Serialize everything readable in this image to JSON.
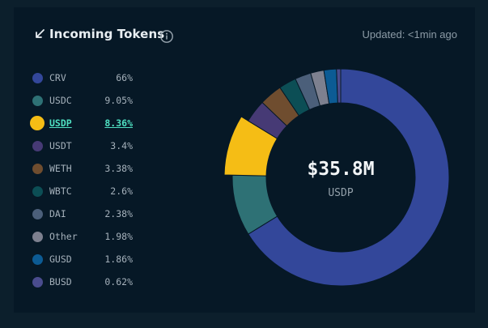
{
  "header": {
    "title": "Incoming Tokens",
    "updated": "Updated: <1min ago",
    "arrow_icon": "arrow-down-left-icon",
    "info_icon": "info-icon"
  },
  "center": {
    "value": "$35.8M",
    "label": "USDP"
  },
  "active_token": "USDP",
  "chart_data": {
    "type": "pie",
    "title": "Incoming Tokens",
    "donut": true,
    "categories": [
      "CRV",
      "USDC",
      "USDP",
      "USDT",
      "WETH",
      "WBTC",
      "DAI",
      "Other",
      "GUSD",
      "BUSD"
    ],
    "labels": [
      "66%",
      "9.05%",
      "8.36%",
      "3.4%",
      "3.38%",
      "2.6%",
      "2.38%",
      "1.98%",
      "1.86%",
      "0.62%"
    ],
    "values": [
      66,
      9.05,
      8.36,
      3.4,
      3.38,
      2.6,
      2.38,
      1.98,
      1.86,
      0.62
    ],
    "colors": [
      "#33479a",
      "#2e7175",
      "#f5bd15",
      "#463a75",
      "#6f4d2f",
      "#0c4e55",
      "#4b5f7a",
      "#7d808f",
      "#0c5b94",
      "#4a4c8e"
    ],
    "highlighted": "USDP"
  }
}
